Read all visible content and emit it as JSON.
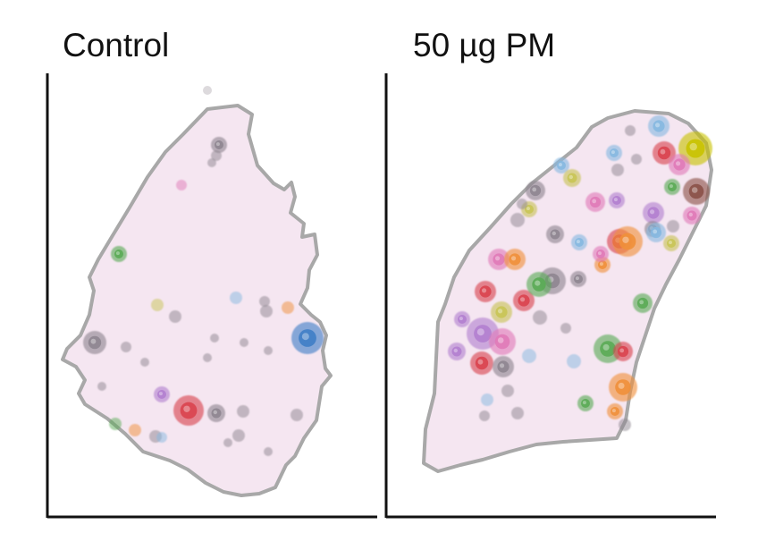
{
  "panels": [
    {
      "title": "Control",
      "clones": [
        {
          "c": "grey",
          "s": 9
        },
        {
          "c": "grey",
          "s": 5
        },
        {
          "c": "grey",
          "s": 6
        },
        {
          "c": "pink",
          "s": 6
        },
        {
          "c": "green",
          "s": 9
        },
        {
          "c": "yellow",
          "s": 7
        },
        {
          "c": "grey",
          "s": 7
        },
        {
          "c": "lightblue",
          "s": 7
        },
        {
          "c": "grey",
          "s": 6
        },
        {
          "c": "grey",
          "s": 7
        },
        {
          "c": "orange",
          "s": 7
        },
        {
          "c": "blue",
          "s": 18
        },
        {
          "c": "grey",
          "s": 13
        },
        {
          "c": "grey",
          "s": 6
        },
        {
          "c": "grey",
          "s": 5
        },
        {
          "c": "grey",
          "s": 5
        },
        {
          "c": "grey",
          "s": 5
        },
        {
          "c": "purple",
          "s": 9
        },
        {
          "c": "red",
          "s": 17
        },
        {
          "c": "grey",
          "s": 10
        },
        {
          "c": "grey",
          "s": 7
        },
        {
          "c": "grey",
          "s": 7
        },
        {
          "c": "grey",
          "s": 7
        },
        {
          "c": "grey",
          "s": 7
        },
        {
          "c": "green",
          "s": 7
        },
        {
          "c": "orange",
          "s": 7
        },
        {
          "c": "lightblue",
          "s": 6
        },
        {
          "c": "grey",
          "s": 5
        },
        {
          "c": "grey",
          "s": 5
        },
        {
          "c": "grey",
          "s": 5
        },
        {
          "c": "grey",
          "s": 5
        },
        {
          "c": "grey",
          "s": 5
        }
      ]
    },
    {
      "title": "50 µg PM",
      "clones": [
        {
          "c": "lightblue",
          "s": 12
        },
        {
          "c": "olive",
          "s": 19
        },
        {
          "c": "red",
          "s": 13
        },
        {
          "c": "pink",
          "s": 12
        },
        {
          "c": "brown",
          "s": 15
        },
        {
          "c": "green",
          "s": 9
        },
        {
          "c": "lightblue",
          "s": 9
        },
        {
          "c": "grey",
          "s": 7
        },
        {
          "c": "grey",
          "s": 6
        },
        {
          "c": "grey",
          "s": 6
        },
        {
          "c": "lightblue",
          "s": 9
        },
        {
          "c": "yellow",
          "s": 10
        },
        {
          "c": "grey",
          "s": 11
        },
        {
          "c": "pink",
          "s": 11
        },
        {
          "c": "purple",
          "s": 9
        },
        {
          "c": "grey",
          "s": 8
        },
        {
          "c": "yellow",
          "s": 9
        },
        {
          "c": "grey",
          "s": 10
        },
        {
          "c": "lightblue",
          "s": 9
        },
        {
          "c": "purple",
          "s": 12
        },
        {
          "c": "grey",
          "s": 9
        },
        {
          "c": "pink",
          "s": 10
        },
        {
          "c": "red",
          "s": 14
        },
        {
          "c": "orange",
          "s": 17
        },
        {
          "c": "lightblue",
          "s": 11
        },
        {
          "c": "yellow",
          "s": 9
        },
        {
          "c": "grey",
          "s": 7
        },
        {
          "c": "orange",
          "s": 9
        },
        {
          "c": "pink",
          "s": 9
        },
        {
          "c": "green",
          "s": 11
        },
        {
          "c": "pink",
          "s": 12
        },
        {
          "c": "red",
          "s": 12
        },
        {
          "c": "grey",
          "s": 15
        },
        {
          "c": "yellow",
          "s": 12
        },
        {
          "c": "red",
          "s": 12
        },
        {
          "c": "grey",
          "s": 8
        },
        {
          "c": "green",
          "s": 14
        },
        {
          "c": "purple",
          "s": 9
        },
        {
          "c": "grey",
          "s": 9
        },
        {
          "c": "orange",
          "s": 12
        },
        {
          "c": "purple",
          "s": 18
        },
        {
          "c": "pink",
          "s": 15
        },
        {
          "c": "red",
          "s": 13
        },
        {
          "c": "grey",
          "s": 12
        },
        {
          "c": "purple",
          "s": 10
        },
        {
          "c": "grey",
          "s": 7
        },
        {
          "c": "lightblue",
          "s": 8
        },
        {
          "c": "green",
          "s": 16
        },
        {
          "c": "red",
          "s": 11
        },
        {
          "c": "lightblue",
          "s": 8
        },
        {
          "c": "orange",
          "s": 16
        },
        {
          "c": "grey",
          "s": 7
        },
        {
          "c": "lightblue",
          "s": 7
        },
        {
          "c": "green",
          "s": 9
        },
        {
          "c": "orange",
          "s": 9
        },
        {
          "c": "grey",
          "s": 6
        },
        {
          "c": "grey",
          "s": 7
        },
        {
          "c": "grey",
          "s": 6
        },
        {
          "c": "grey",
          "s": 6
        }
      ]
    }
  ],
  "colors": {
    "tissue_fill": "#f5e6f1",
    "tissue_outline": "#a8a8a8",
    "axis": "#111111",
    "grey": "#8e8590",
    "pink": "#e07ab8",
    "green": "#5aab55",
    "yellow": "#c8c455",
    "lightblue": "#86b8e0",
    "orange": "#f0903a",
    "blue": "#3f7ec6",
    "purple": "#b27fcf",
    "red": "#d9434e",
    "olive": "#c8c200",
    "brown": "#8a5048"
  }
}
